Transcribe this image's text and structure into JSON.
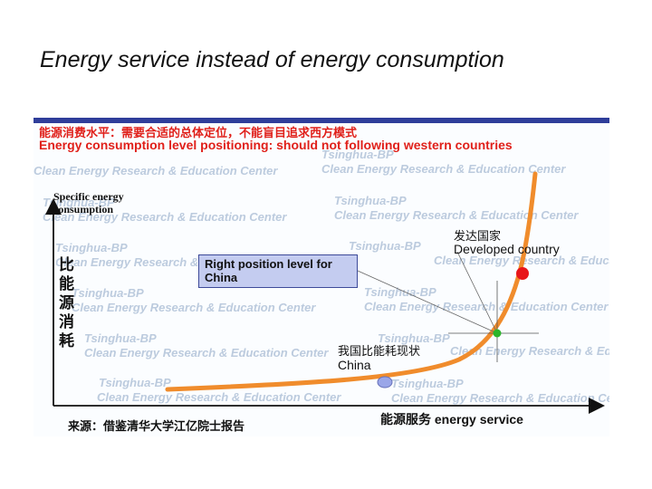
{
  "slide": {
    "title": "Energy service instead of energy consumption"
  },
  "figure": {
    "header_cn": "能源消费水平：需要合适的总体定位，不能盲目追求西方模式",
    "header_en": "Energy consumption level positioning: should not following western countries",
    "y_axis_label_en": "Specific energy consumption",
    "y_axis_label_cn": "比能源消耗",
    "x_axis_label": "能源服务 energy service",
    "source": "来源：借鉴清华大学江亿院士报告",
    "annotations": {
      "right_position": "Right position level for China",
      "developed_cn": "发达国家",
      "developed_en": "Developed country",
      "china_cn": "我国比能耗现状",
      "china_en": "China"
    },
    "watermark": {
      "line1": "Tsinghua-BP",
      "line2": "Clean Energy Research & Education Center"
    },
    "colors": {
      "curve": "#f08c2c",
      "developed_marker": "#e8161a",
      "right_marker": "#2bb52b",
      "china_marker": "#9aa6e8",
      "header_text": "#e0201a"
    }
  }
}
